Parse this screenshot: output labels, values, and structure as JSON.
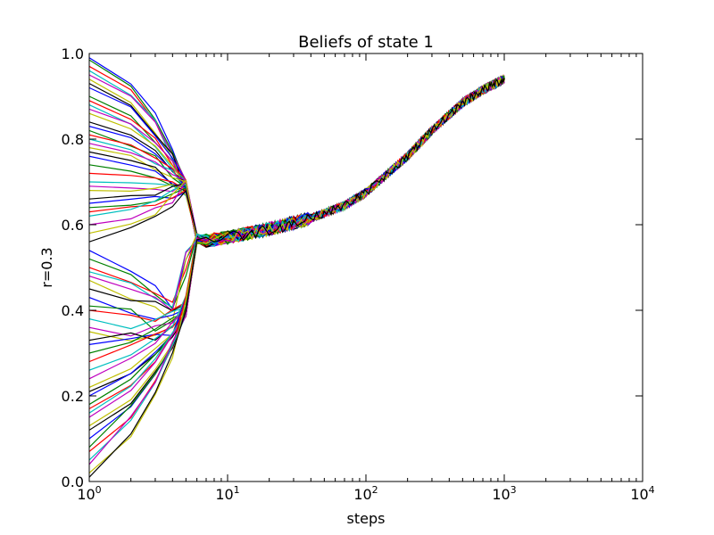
{
  "chart_data": {
    "type": "line",
    "title": "Beliefs of state 1",
    "xlabel": "steps",
    "ylabel": "r=0.3",
    "x_scale": "log",
    "xlim": [
      1,
      10000
    ],
    "ylim": [
      0.0,
      1.0
    ],
    "x_ticks": [
      {
        "value": 1,
        "base": "10",
        "exp": "0"
      },
      {
        "value": 10,
        "base": "10",
        "exp": "1"
      },
      {
        "value": 100,
        "base": "10",
        "exp": "2"
      },
      {
        "value": 1000,
        "base": "10",
        "exp": "3"
      },
      {
        "value": 10000,
        "base": "10",
        "exp": "4"
      }
    ],
    "y_ticks": [
      "0.0",
      "0.2",
      "0.4",
      "0.6",
      "0.8",
      "1.0"
    ],
    "legend": "none",
    "grid": false,
    "palette": [
      "#0000ff",
      "#008000",
      "#ff0000",
      "#00bfbf",
      "#bf00bf",
      "#bfbf00",
      "#000000"
    ],
    "series_count": 70,
    "convergence": {
      "x": [
        6,
        10,
        20,
        40,
        70,
        100,
        200,
        300,
        500,
        700,
        1000
      ],
      "y": [
        0.56,
        0.57,
        0.59,
        0.615,
        0.645,
        0.675,
        0.76,
        0.82,
        0.885,
        0.915,
        0.94
      ],
      "jitter": 0.012
    },
    "initial_values": [
      0.99,
      0.985,
      0.97,
      0.96,
      0.95,
      0.94,
      0.93,
      0.92,
      0.9,
      0.89,
      0.88,
      0.87,
      0.86,
      0.84,
      0.83,
      0.82,
      0.81,
      0.8,
      0.79,
      0.78,
      0.77,
      0.76,
      0.74,
      0.72,
      0.7,
      0.69,
      0.68,
      0.66,
      0.65,
      0.64,
      0.63,
      0.62,
      0.6,
      0.58,
      0.56,
      0.54,
      0.52,
      0.5,
      0.49,
      0.48,
      0.47,
      0.45,
      0.43,
      0.41,
      0.4,
      0.38,
      0.36,
      0.35,
      0.33,
      0.32,
      0.3,
      0.28,
      0.26,
      0.24,
      0.22,
      0.21,
      0.2,
      0.18,
      0.17,
      0.16,
      0.15,
      0.13,
      0.12,
      0.1,
      0.08,
      0.07,
      0.05,
      0.04,
      0.02,
      0.01
    ]
  }
}
